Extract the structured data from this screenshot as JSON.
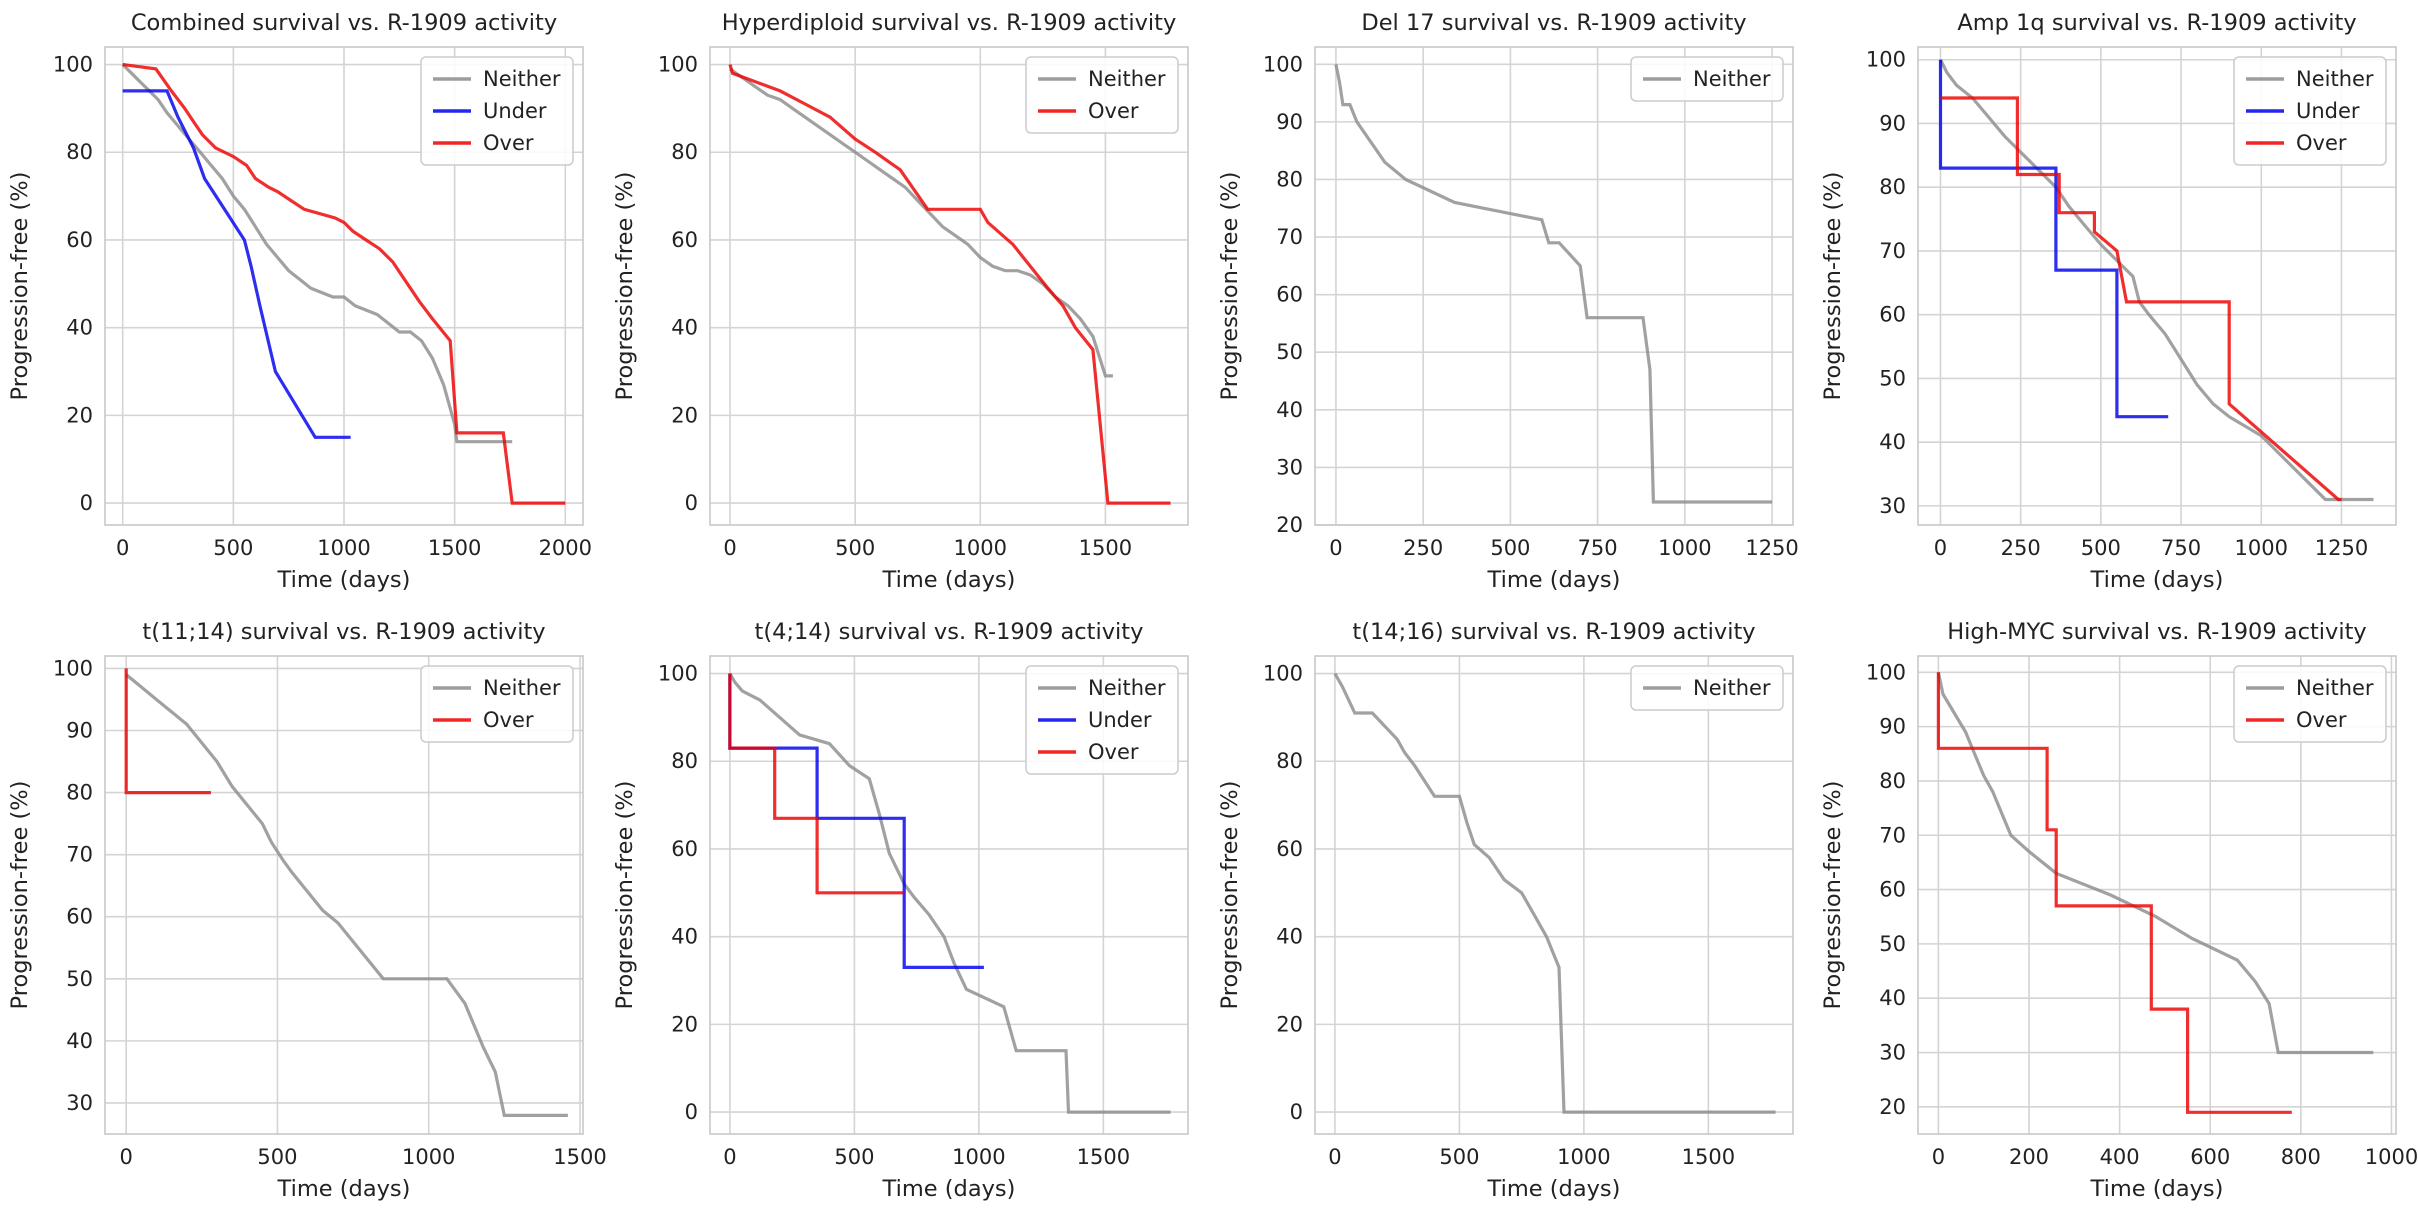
{
  "figure": {
    "line_colors": {
      "Neither": "#8c8c8c",
      "Under": "#0000ee",
      "Over": "#ee0000"
    }
  },
  "chart_data": [
    {
      "type": "line",
      "title": "Combined survival vs. R-1909 activity",
      "xlabel": "Time (days)",
      "ylabel": "Progression-free (%)",
      "xlim": [
        -80,
        2080
      ],
      "ylim": [
        -5,
        104
      ],
      "xticks": [
        0,
        500,
        1000,
        1500,
        2000
      ],
      "yticks": [
        0,
        20,
        40,
        60,
        80,
        100
      ],
      "legend_position": "top-right",
      "series": [
        {
          "name": "Neither",
          "x": [
            0,
            40,
            80,
            120,
            160,
            200,
            250,
            300,
            350,
            400,
            450,
            500,
            550,
            600,
            650,
            700,
            750,
            800,
            850,
            900,
            950,
            1000,
            1050,
            1100,
            1150,
            1200,
            1250,
            1300,
            1350,
            1400,
            1450,
            1500,
            1510,
            1760
          ],
          "y": [
            100,
            98,
            96,
            94,
            92,
            89,
            86,
            83,
            80,
            77,
            74,
            70,
            67,
            63,
            59,
            56,
            53,
            51,
            49,
            48,
            47,
            47,
            45,
            44,
            43,
            41,
            39,
            39,
            37,
            33,
            27,
            18,
            14,
            14
          ]
        },
        {
          "name": "Under",
          "x": [
            0,
            200,
            250,
            320,
            370,
            460,
            550,
            580,
            620,
            690,
            870,
            1030
          ],
          "y": [
            94,
            94,
            88,
            81,
            74,
            67,
            60,
            54,
            45,
            30,
            15,
            15
          ]
        },
        {
          "name": "Over",
          "x": [
            0,
            150,
            220,
            280,
            320,
            360,
            420,
            500,
            560,
            600,
            660,
            700,
            760,
            820,
            960,
            1000,
            1040,
            1100,
            1160,
            1220,
            1260,
            1300,
            1340,
            1400,
            1480,
            1510,
            1720,
            1760,
            2000
          ],
          "y": [
            100,
            99,
            94,
            90,
            87,
            84,
            81,
            79,
            77,
            74,
            72,
            71,
            69,
            67,
            65,
            64,
            62,
            60,
            58,
            55,
            52,
            49,
            46,
            42,
            37,
            16,
            16,
            0,
            0
          ]
        }
      ]
    },
    {
      "type": "line",
      "title": "Hyperdiploid survival vs. R-1909 activity",
      "xlabel": "Time (days)",
      "ylabel": "Progression-free (%)",
      "xlim": [
        -80,
        1830
      ],
      "ylim": [
        -5,
        104
      ],
      "xticks": [
        0,
        500,
        1000,
        1500
      ],
      "yticks": [
        0,
        20,
        40,
        60,
        80,
        100
      ],
      "legend_position": "top-right",
      "series": [
        {
          "name": "Neither",
          "x": [
            0,
            50,
            100,
            150,
            200,
            250,
            300,
            350,
            400,
            450,
            500,
            550,
            600,
            650,
            700,
            750,
            800,
            850,
            900,
            950,
            1000,
            1050,
            1100,
            1150,
            1200,
            1250,
            1300,
            1350,
            1400,
            1450,
            1500,
            1530
          ],
          "y": [
            99,
            97,
            95,
            93,
            92,
            90,
            88,
            86,
            84,
            82,
            80,
            78,
            76,
            74,
            72,
            69,
            66,
            63,
            61,
            59,
            56,
            54,
            53,
            53,
            52,
            50,
            47,
            45,
            42,
            38,
            29,
            29
          ]
        },
        {
          "name": "Over",
          "x": [
            0,
            10,
            200,
            300,
            400,
            500,
            580,
            680,
            790,
            1000,
            1030,
            1130,
            1200,
            1270,
            1330,
            1380,
            1450,
            1510,
            1760
          ],
          "y": [
            100,
            98,
            94,
            91,
            88,
            83,
            80,
            76,
            67,
            67,
            64,
            59,
            54,
            49,
            45,
            40,
            35,
            0,
            0
          ]
        }
      ]
    },
    {
      "type": "line",
      "title": "Del 17 survival vs. R-1909 activity",
      "xlabel": "Time (days)",
      "ylabel": "Progression-free (%)",
      "xlim": [
        -60,
        1310
      ],
      "ylim": [
        20,
        103
      ],
      "xticks": [
        0,
        250,
        500,
        750,
        1000,
        1250
      ],
      "yticks": [
        20,
        30,
        40,
        50,
        60,
        70,
        80,
        90,
        100
      ],
      "legend_position": "top-right",
      "series": [
        {
          "name": "Neither",
          "x": [
            0,
            10,
            20,
            40,
            60,
            140,
            200,
            340,
            590,
            610,
            640,
            700,
            720,
            880,
            900,
            910,
            1250
          ],
          "y": [
            100,
            97,
            93,
            93,
            90,
            83,
            80,
            76,
            73,
            69,
            69,
            65,
            56,
            56,
            47,
            24,
            24
          ]
        }
      ]
    },
    {
      "type": "line",
      "title": "Amp 1q survival vs. R-1909 activity",
      "xlabel": "Time (days)",
      "ylabel": "Progression-free (%)",
      "xlim": [
        -70,
        1420
      ],
      "ylim": [
        27,
        102
      ],
      "xticks": [
        0,
        250,
        500,
        750,
        1000,
        1250
      ],
      "yticks": [
        30,
        40,
        50,
        60,
        70,
        80,
        90,
        100
      ],
      "legend_position": "top-right",
      "series": [
        {
          "name": "Neither",
          "x": [
            0,
            20,
            50,
            100,
            150,
            200,
            240,
            280,
            320,
            360,
            400,
            450,
            500,
            560,
            600,
            620,
            650,
            700,
            750,
            800,
            850,
            900,
            1000,
            1200,
            1350
          ],
          "y": [
            100,
            98,
            96,
            94,
            91,
            88,
            86,
            84,
            82,
            80,
            77,
            74,
            71,
            68,
            66,
            62,
            60,
            57,
            53,
            49,
            46,
            44,
            41,
            31,
            31
          ]
        },
        {
          "name": "Under",
          "x": [
            0,
            0,
            360,
            360,
            550,
            550,
            710
          ],
          "y": [
            100,
            83,
            83,
            67,
            67,
            44,
            44
          ]
        },
        {
          "name": "Over",
          "x": [
            0,
            240,
            240,
            370,
            370,
            480,
            480,
            550,
            580,
            900,
            900,
            1240,
            1250
          ],
          "y": [
            94,
            94,
            82,
            82,
            76,
            76,
            73,
            70,
            62,
            62,
            46,
            31,
            31
          ]
        }
      ]
    },
    {
      "type": "line",
      "title": "t(11;14) survival vs. R-1909 activity",
      "xlabel": "Time (days)",
      "ylabel": "Progression-free (%)",
      "xlim": [
        -70,
        1510
      ],
      "ylim": [
        25,
        102
      ],
      "xticks": [
        0,
        500,
        1000,
        1500
      ],
      "yticks": [
        30,
        40,
        50,
        60,
        70,
        80,
        90,
        100
      ],
      "legend_position": "top-right",
      "series": [
        {
          "name": "Neither",
          "x": [
            0,
            50,
            100,
            150,
            200,
            250,
            300,
            350,
            400,
            450,
            480,
            520,
            550,
            600,
            650,
            700,
            850,
            1060,
            1120,
            1180,
            1220,
            1250,
            1460
          ],
          "y": [
            99,
            97,
            95,
            93,
            91,
            88,
            85,
            81,
            78,
            75,
            72,
            69,
            67,
            64,
            61,
            59,
            50,
            50,
            46,
            39,
            35,
            28,
            28
          ]
        },
        {
          "name": "Over",
          "x": [
            0,
            0,
            280
          ],
          "y": [
            100,
            80,
            80
          ]
        }
      ]
    },
    {
      "type": "line",
      "title": "t(4;14) survival vs. R-1909 activity",
      "xlabel": "Time (days)",
      "ylabel": "Progression-free (%)",
      "xlim": [
        -80,
        1840
      ],
      "ylim": [
        -5,
        104
      ],
      "xticks": [
        0,
        500,
        1000,
        1500
      ],
      "yticks": [
        0,
        20,
        40,
        60,
        80,
        100
      ],
      "legend_position": "top-right",
      "series": [
        {
          "name": "Neither",
          "x": [
            0,
            20,
            50,
            120,
            200,
            280,
            400,
            480,
            560,
            600,
            640,
            700,
            740,
            800,
            860,
            900,
            950,
            1100,
            1150,
            1350,
            1360,
            1770
          ],
          "y": [
            100,
            98,
            96,
            94,
            90,
            86,
            84,
            79,
            76,
            68,
            59,
            52,
            49,
            45,
            40,
            34,
            28,
            24,
            14,
            14,
            0,
            0
          ]
        },
        {
          "name": "Under",
          "x": [
            0,
            0,
            350,
            350,
            700,
            700,
            1020
          ],
          "y": [
            100,
            83,
            83,
            67,
            67,
            33,
            33
          ]
        },
        {
          "name": "Over",
          "x": [
            0,
            0,
            180,
            180,
            350,
            350,
            700
          ],
          "y": [
            100,
            83,
            83,
            67,
            67,
            50,
            50
          ]
        }
      ]
    },
    {
      "type": "line",
      "title": "t(14;16) survival vs. R-1909 activity",
      "xlabel": "Time (days)",
      "ylabel": "Progression-free (%)",
      "xlim": [
        -80,
        1840
      ],
      "ylim": [
        -5,
        104
      ],
      "xticks": [
        0,
        500,
        1000,
        1500
      ],
      "yticks": [
        0,
        20,
        40,
        60,
        80,
        100
      ],
      "legend_position": "top-right",
      "series": [
        {
          "name": "Neither",
          "x": [
            0,
            30,
            80,
            150,
            250,
            280,
            320,
            400,
            500,
            530,
            560,
            620,
            680,
            750,
            800,
            850,
            900,
            920,
            1770
          ],
          "y": [
            100,
            97,
            91,
            91,
            85,
            82,
            79,
            72,
            72,
            66,
            61,
            58,
            53,
            50,
            45,
            40,
            33,
            0,
            0
          ]
        }
      ]
    },
    {
      "type": "line",
      "title": "High-MYC survival vs. R-1909 activity",
      "xlabel": "Time (days)",
      "ylabel": "Progression-free (%)",
      "xlim": [
        -45,
        1010
      ],
      "ylim": [
        15,
        103
      ],
      "xticks": [
        0,
        200,
        400,
        600,
        800,
        1000
      ],
      "yticks": [
        20,
        30,
        40,
        50,
        60,
        70,
        80,
        90,
        100
      ],
      "legend_position": "top-right",
      "series": [
        {
          "name": "Neither",
          "x": [
            0,
            10,
            60,
            80,
            100,
            120,
            140,
            160,
            200,
            260,
            380,
            480,
            560,
            660,
            700,
            730,
            750,
            960
          ],
          "y": [
            100,
            96,
            89,
            85,
            81,
            78,
            74,
            70,
            67,
            63,
            59,
            55,
            51,
            47,
            43,
            39,
            30,
            30
          ]
        },
        {
          "name": "Over",
          "x": [
            0,
            0,
            240,
            240,
            260,
            260,
            470,
            470,
            550,
            550,
            780
          ],
          "y": [
            100,
            86,
            86,
            71,
            71,
            57,
            57,
            38,
            38,
            19,
            19
          ]
        }
      ]
    }
  ]
}
